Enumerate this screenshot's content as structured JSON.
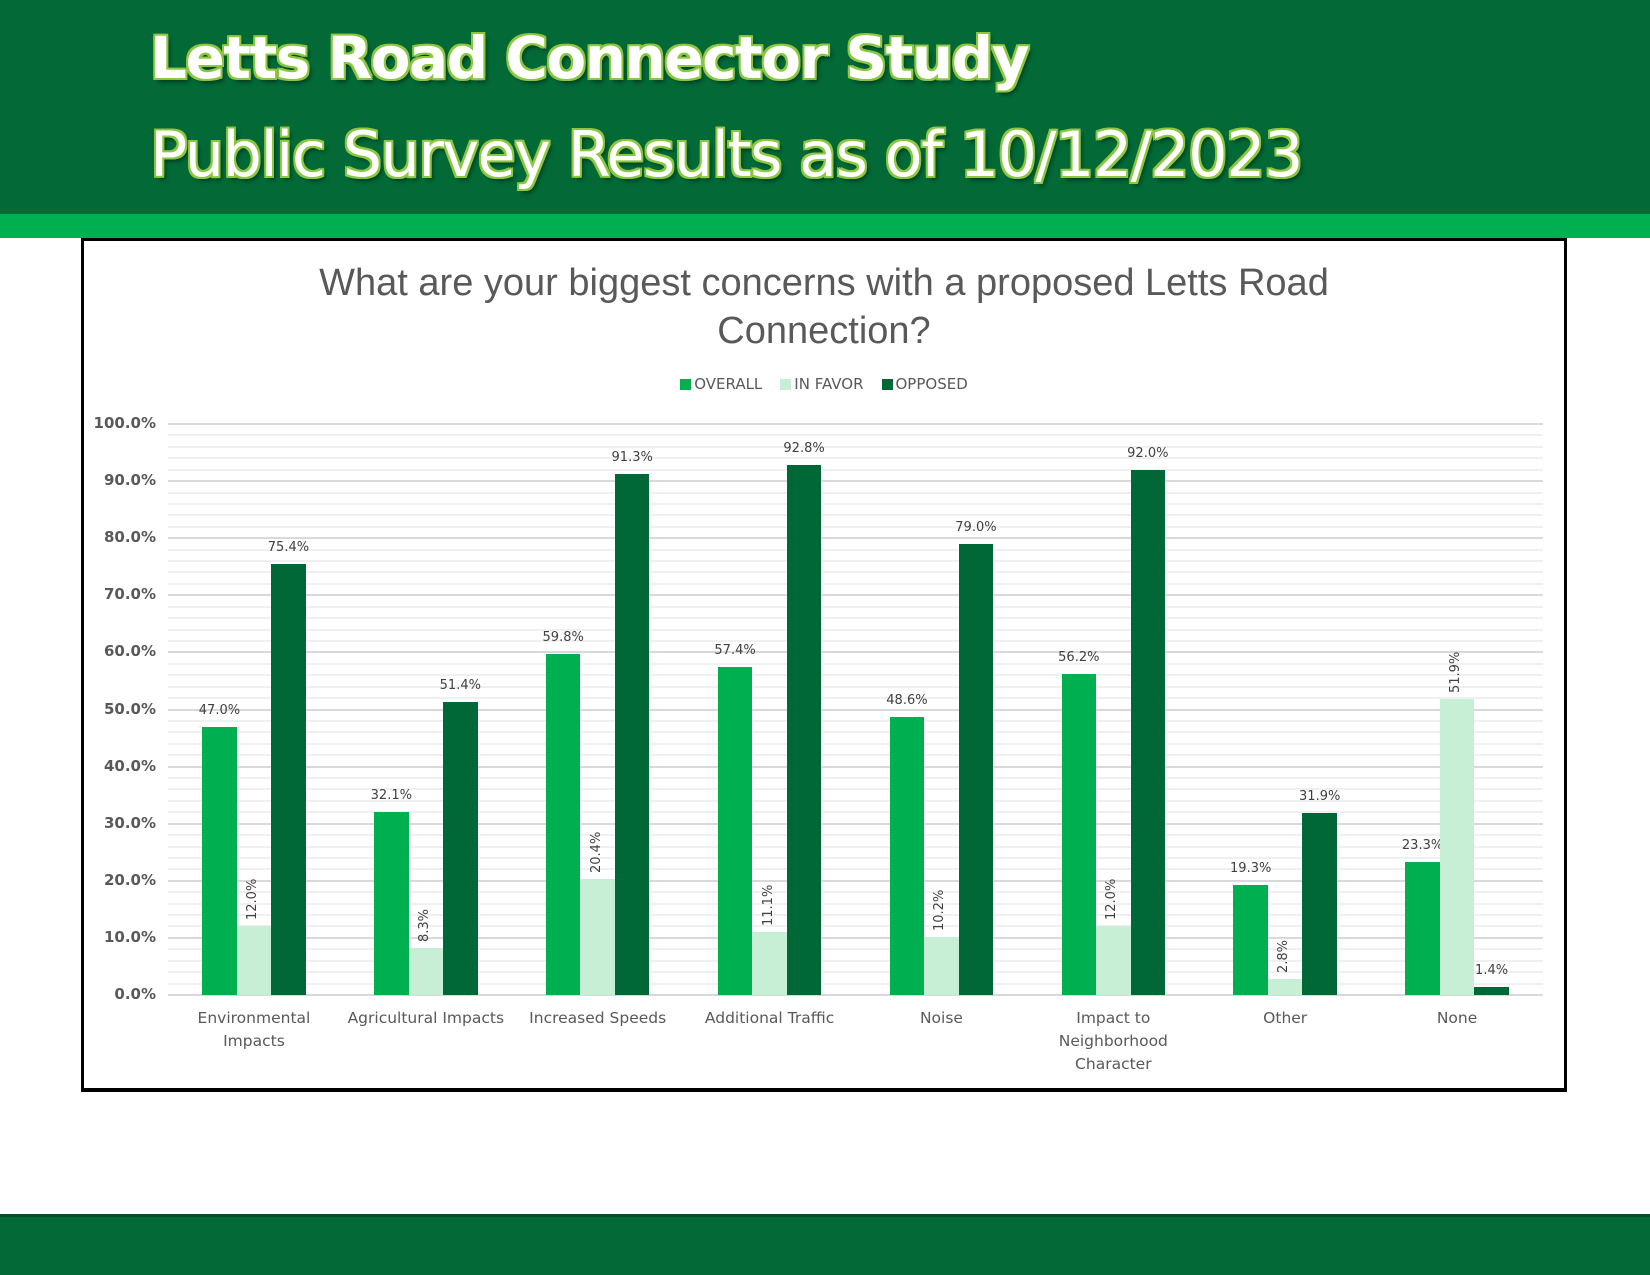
{
  "header": {
    "title": "Letts Road Connector Study",
    "subtitle": "Public Survey Results as of 10/12/2023"
  },
  "colors": {
    "header_bg": "#026937",
    "header_band": "#00AF50",
    "title_glow": "#8DC63F",
    "overall": "#00B050",
    "in_favor": "#C6EFD5",
    "opposed": "#006837"
  },
  "chart_data": {
    "type": "bar",
    "title": "What are your biggest concerns with a proposed Letts Road Connection?",
    "title_lines": [
      "What are your biggest concerns with a proposed Letts Road",
      "Connection?"
    ],
    "xlabel": "",
    "ylabel": "",
    "ylim": [
      0,
      100
    ],
    "yticks": [
      "0.0%",
      "10.0%",
      "20.0%",
      "30.0%",
      "40.0%",
      "50.0%",
      "60.0%",
      "70.0%",
      "80.0%",
      "90.0%",
      "100.0%"
    ],
    "grid": {
      "major_step": 10,
      "minor_step": 2
    },
    "legend_position": "top",
    "categories": [
      "Environmental Impacts",
      "Agricultural Impacts",
      "Increased Speeds",
      "Additional Traffic",
      "Noise",
      "Impact to Neighborhood Character",
      "Other",
      "None"
    ],
    "category_label_lines": [
      [
        "Environmental",
        "Impacts"
      ],
      [
        "Agricultural Impacts"
      ],
      [
        "Increased Speeds"
      ],
      [
        "Additional Traffic"
      ],
      [
        "Noise"
      ],
      [
        "Impact to",
        "Neighborhood",
        "Character"
      ],
      [
        "Other"
      ],
      [
        "None"
      ]
    ],
    "series": [
      {
        "name": "OVERALL",
        "color": "#00B050",
        "values": [
          47.0,
          32.1,
          59.8,
          57.4,
          48.6,
          56.2,
          19.3,
          23.3
        ],
        "labels": [
          "47.0%",
          "32.1%",
          "59.8%",
          "57.4%",
          "48.6%",
          "56.2%",
          "19.3%",
          "23.3%"
        ],
        "label_orientation": "horizontal"
      },
      {
        "name": "IN FAVOR",
        "color": "#C6EFD5",
        "values": [
          12.0,
          8.3,
          20.4,
          11.1,
          10.2,
          12.0,
          2.8,
          51.9
        ],
        "labels": [
          "12.0%",
          "8.3%",
          "20.4%",
          "11.1%",
          "10.2%",
          "12.0%",
          "2.8%",
          "51.9%"
        ],
        "label_orientation": "vertical"
      },
      {
        "name": "OPPOSED",
        "color": "#006837",
        "values": [
          75.4,
          51.4,
          91.3,
          92.8,
          79.0,
          92.0,
          31.9,
          1.4
        ],
        "labels": [
          "75.4%",
          "51.4%",
          "91.3%",
          "92.8%",
          "79.0%",
          "92.0%",
          "31.9%",
          "1.4%"
        ],
        "label_orientation": "horizontal"
      }
    ]
  }
}
